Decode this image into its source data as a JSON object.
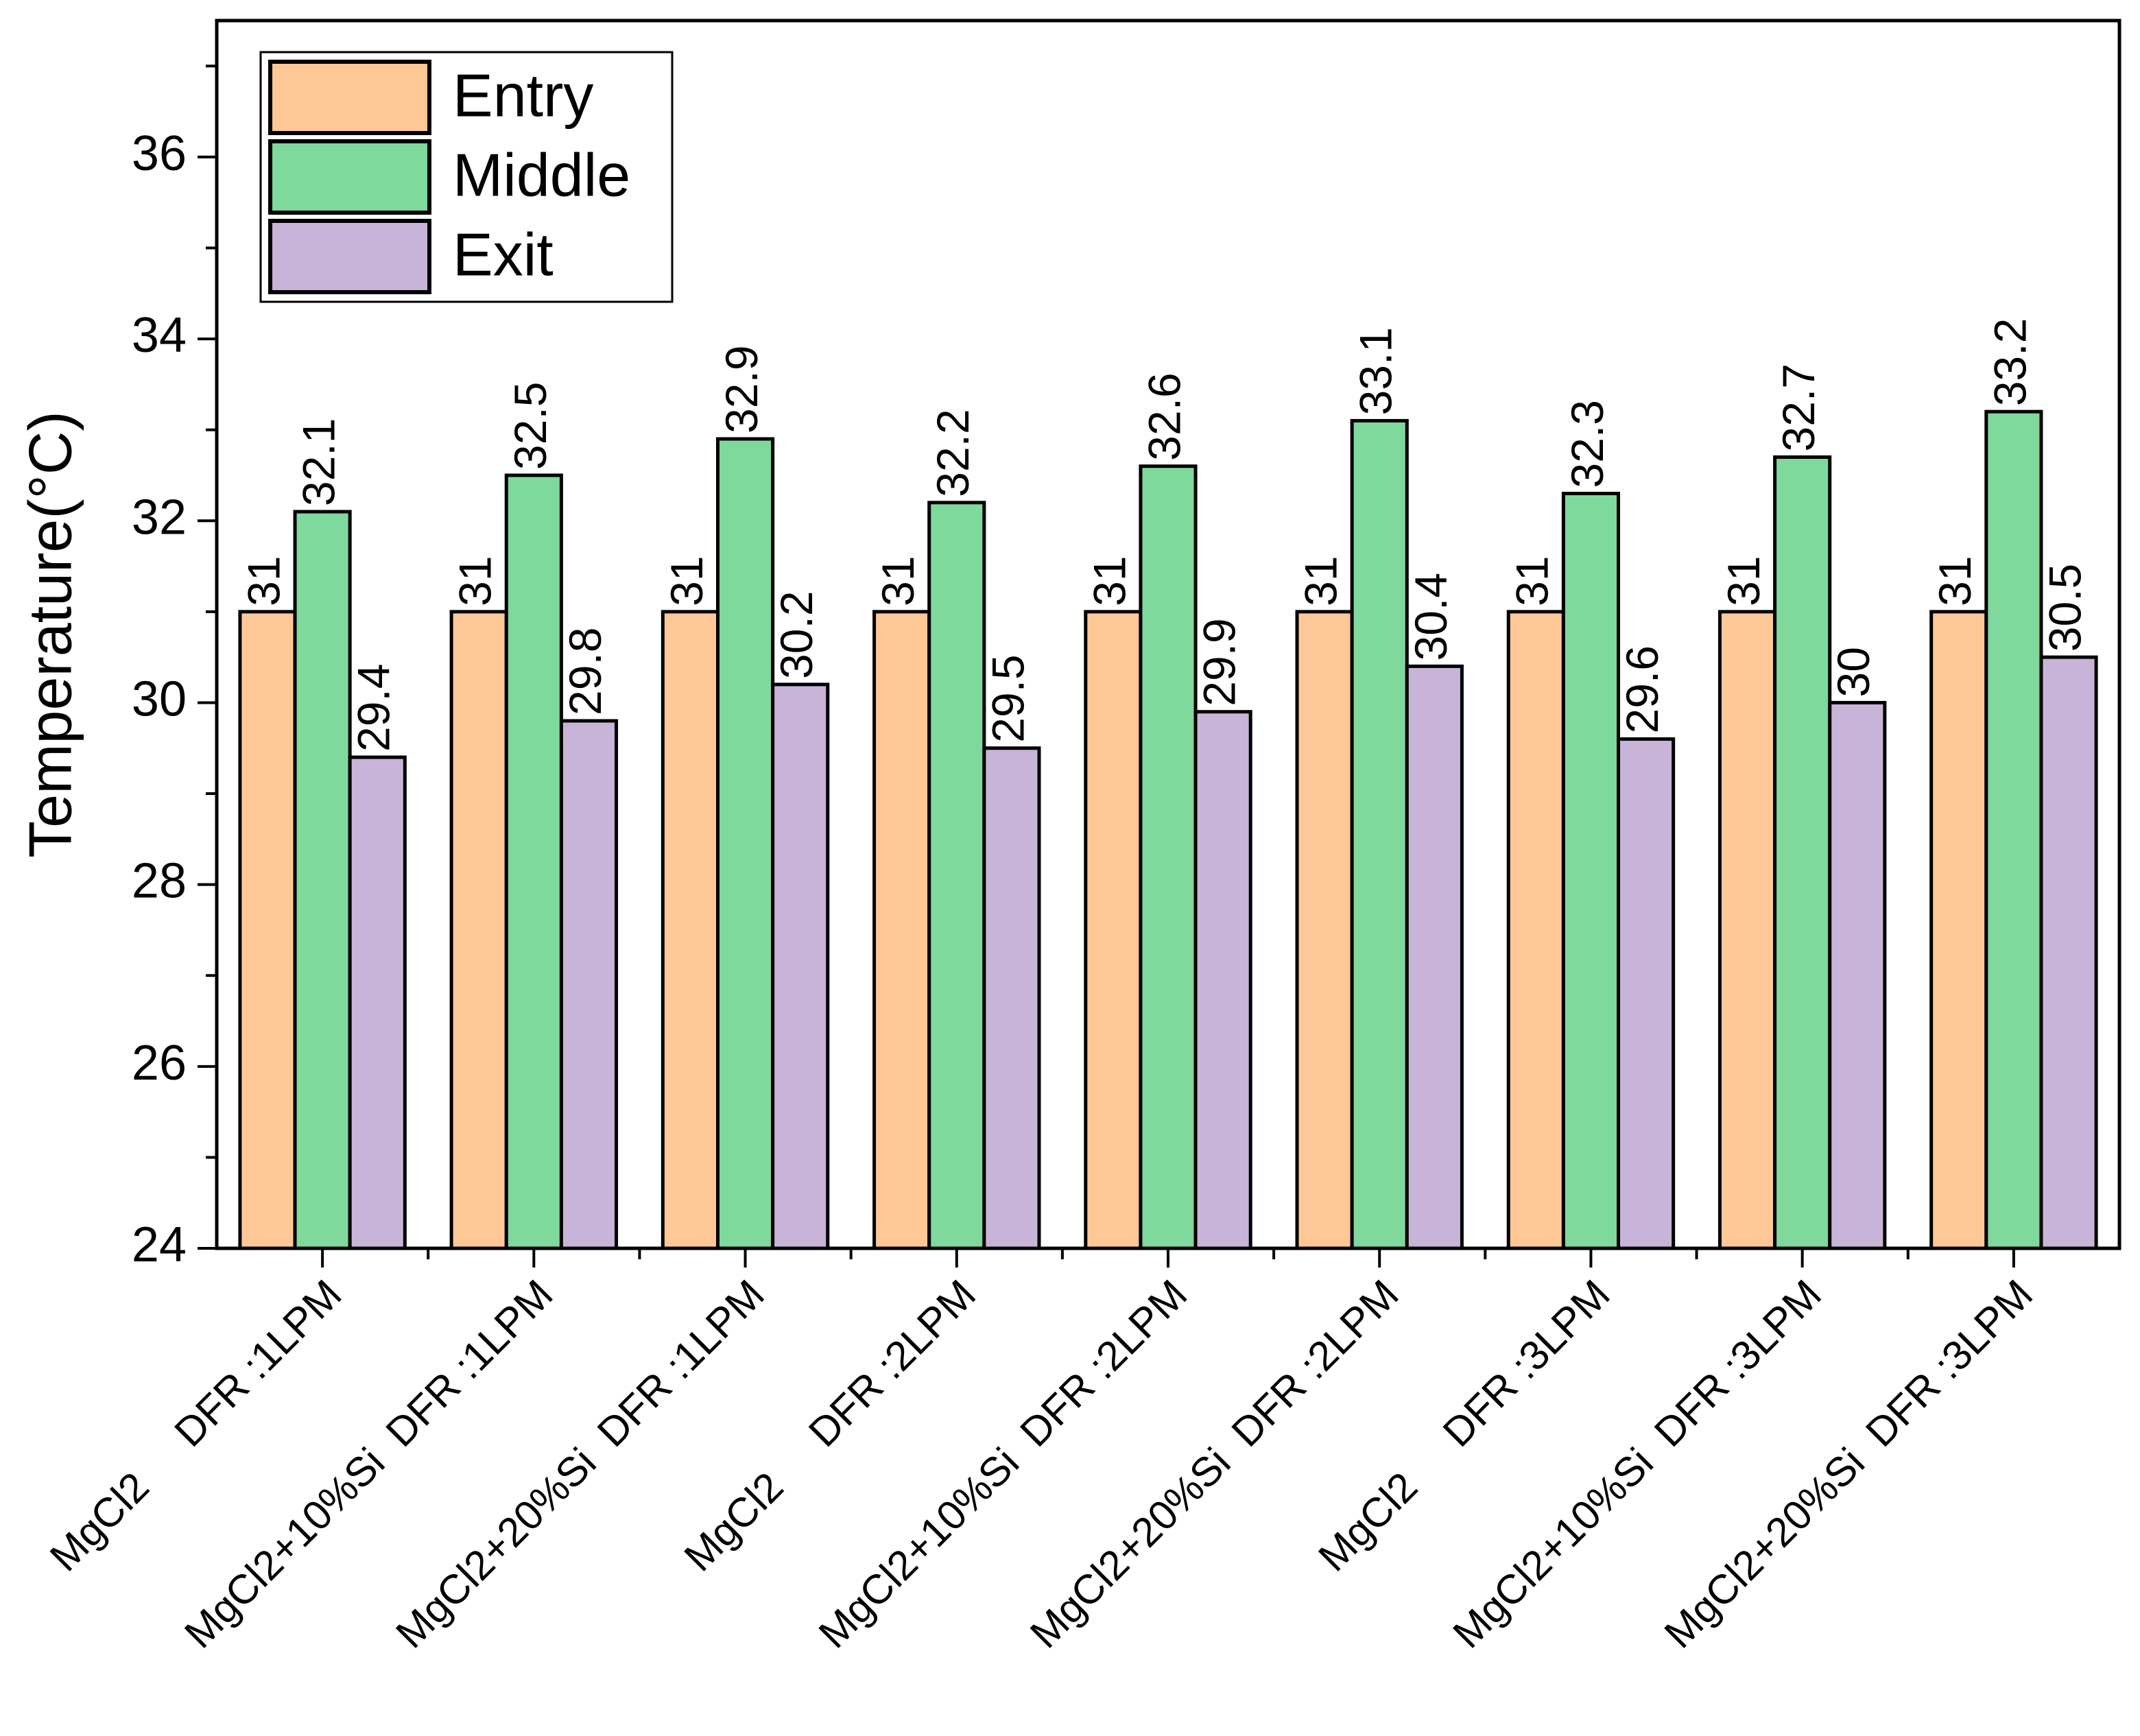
{
  "chart_data": {
    "type": "bar",
    "y_label": "Temperature(°C)",
    "categories": [
      "MgCl2     DFR :1LPM",
      "MgCl2+10%Si  DFR :1LPM",
      "MgCl2+20%Si  DFR :1LPM",
      "MgCl2     DFR :2LPM",
      "MgCl2+10%Si  DFR :2LPM",
      "MgCl2+20%Si  DFR :2LPM",
      "MgCl2     DFR :3LPM",
      "MgCl2+10%Si  DFR :3LPM",
      "MgCl2+20%Si  DFR :3LPM"
    ],
    "series": [
      {
        "name": "Entry",
        "color": "#fdc896",
        "values": [
          31,
          31,
          31,
          31,
          31,
          31,
          31,
          31,
          31
        ]
      },
      {
        "name": "Middle",
        "color": "#7fd89c",
        "values": [
          32.1,
          32.5,
          32.9,
          32.2,
          32.6,
          33.1,
          32.3,
          32.7,
          33.2
        ]
      },
      {
        "name": "Exit",
        "color": "#c8b4d8",
        "values": [
          29.4,
          29.8,
          30.2,
          29.5,
          29.9,
          30.4,
          29.6,
          30,
          30.5
        ]
      }
    ],
    "ylim": [
      24,
      37.5
    ],
    "yticks": [
      24,
      26,
      28,
      30,
      32,
      34,
      36
    ],
    "minor_yticks": [
      25,
      27,
      29,
      31,
      33,
      35,
      37
    ],
    "legend": "top-left",
    "grid": false
  }
}
